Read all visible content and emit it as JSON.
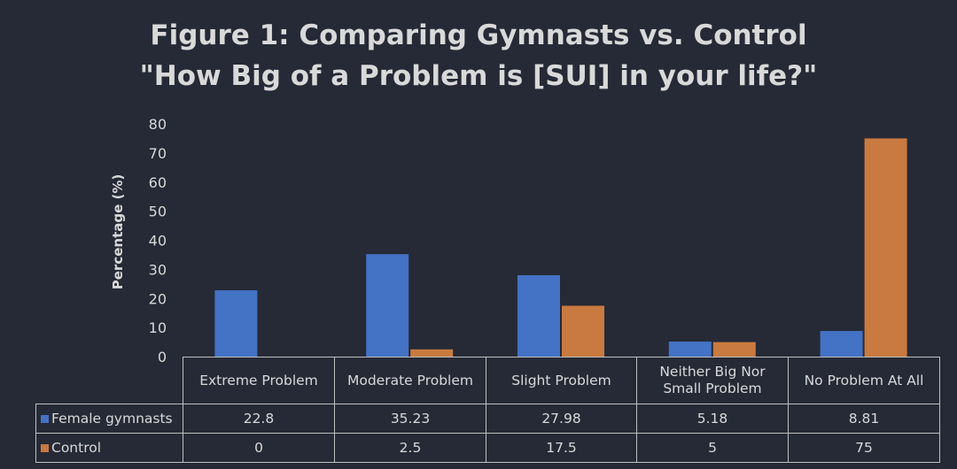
{
  "title": {
    "line1": "Figure 1: Comparing Gymnasts vs. Control",
    "line2": "\"How Big of a Problem is [SUI] in your life?\""
  },
  "chart_data": {
    "type": "bar",
    "title": "Figure 1: Comparing Gymnasts vs. Control \"How Big of a Problem is [SUI] in your life?\"",
    "xlabel": "",
    "ylabel": "Percentage (%)",
    "ylim": [
      0,
      80
    ],
    "yticks": [
      0,
      10,
      20,
      30,
      40,
      50,
      60,
      70,
      80
    ],
    "grid": false,
    "legend": "data-table",
    "categories": [
      "Extreme Problem",
      "Moderate Problem",
      "Slight Problem",
      "Neither Big Nor Small Problem",
      "No Problem At All"
    ],
    "category_lines": [
      [
        "Extreme Problem"
      ],
      [
        "Moderate Problem"
      ],
      [
        "Slight Problem"
      ],
      [
        "Neither Big Nor",
        "Small Problem"
      ],
      [
        "No Problem At All"
      ]
    ],
    "series": [
      {
        "name": "Female gymnasts",
        "color": "#4472c4",
        "values": [
          22.8,
          35.23,
          27.98,
          5.18,
          8.81
        ],
        "labels": [
          "22.8",
          "35.23",
          "27.98",
          "5.18",
          "8.81"
        ]
      },
      {
        "name": "Control",
        "color": "#c97a40",
        "values": [
          0,
          2.5,
          17.5,
          5,
          75
        ],
        "labels": [
          "0",
          "2.5",
          "17.5",
          "5",
          "75"
        ]
      }
    ]
  }
}
